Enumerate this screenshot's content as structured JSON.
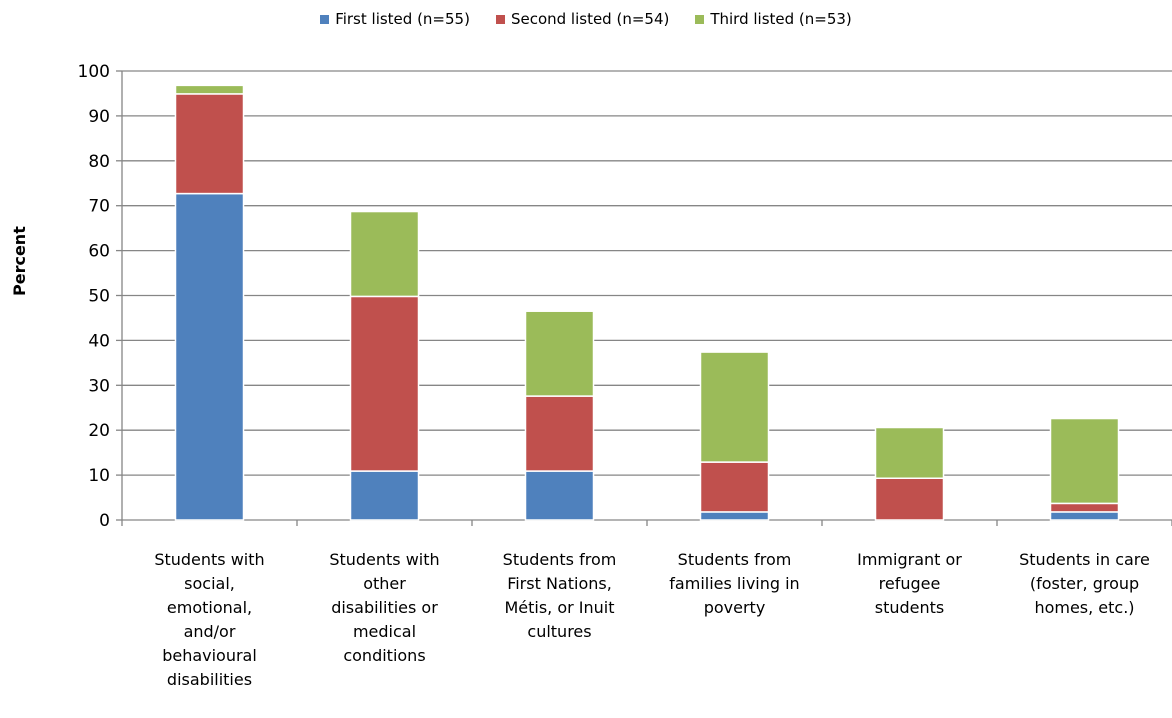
{
  "chart_data": {
    "type": "bar",
    "stacked": true,
    "ylabel": "Percent",
    "xlabel": "",
    "ylim": [
      0,
      100
    ],
    "yticks": [
      0,
      10,
      20,
      30,
      40,
      50,
      60,
      70,
      80,
      90,
      100
    ],
    "grid": true,
    "legend_position": "top",
    "categories": [
      "Students with social, emotional, and/or behavioural disabilities",
      "Students with other disabilities or medical conditions",
      "Students from First Nations, Métis, or Inuit cultures",
      "Students from families living in poverty",
      "Immigrant or refugee students",
      "Students in care (foster, group homes, etc.)"
    ],
    "category_lines": [
      "Students with\nsocial,\nemotional,\nand/or\nbehavioural\ndisabilities",
      "Students with\nother\ndisabilities or\nmedical\nconditions",
      "Students from\nFirst Nations,\nMétis, or Inuit\ncultures",
      "Students from\nfamilies living in\npoverty",
      "Immigrant or\nrefugee\nstudents",
      "Students in care\n(foster, group\nhomes, etc.)"
    ],
    "series": [
      {
        "name": "First listed (n=55)",
        "color": "#4F81BD",
        "values": [
          72.7,
          10.9,
          10.9,
          1.8,
          0,
          1.8
        ]
      },
      {
        "name": "Second listed (n=54)",
        "color": "#C0504D",
        "values": [
          22.2,
          38.9,
          16.7,
          11.1,
          9.3,
          1.9
        ]
      },
      {
        "name": "Third listed (n=53)",
        "color": "#9BBB59",
        "values": [
          1.9,
          18.9,
          18.9,
          24.5,
          11.3,
          18.9
        ]
      }
    ]
  }
}
